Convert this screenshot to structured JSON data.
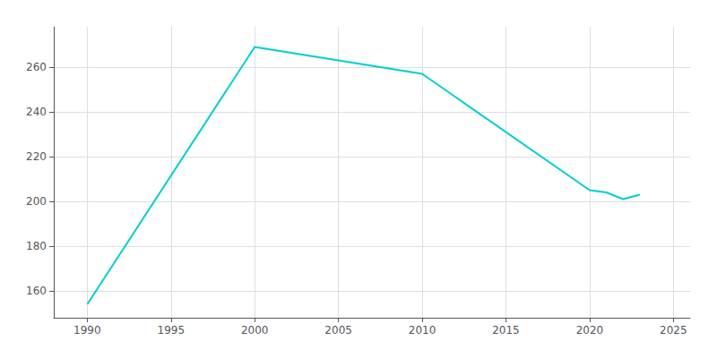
{
  "chart_data": {
    "type": "line",
    "x": [
      1990,
      2000,
      2010,
      2020,
      2021,
      2022,
      2023
    ],
    "values": [
      154,
      269,
      257,
      205,
      204,
      201,
      203
    ],
    "color": "#00CED1",
    "xlim": [
      1988,
      2026
    ],
    "ylim": [
      148,
      278
    ],
    "xticks": [
      1990,
      1995,
      2000,
      2005,
      2010,
      2015,
      2020,
      2025
    ],
    "yticks": [
      160,
      180,
      200,
      220,
      240,
      260
    ],
    "grid": true
  }
}
